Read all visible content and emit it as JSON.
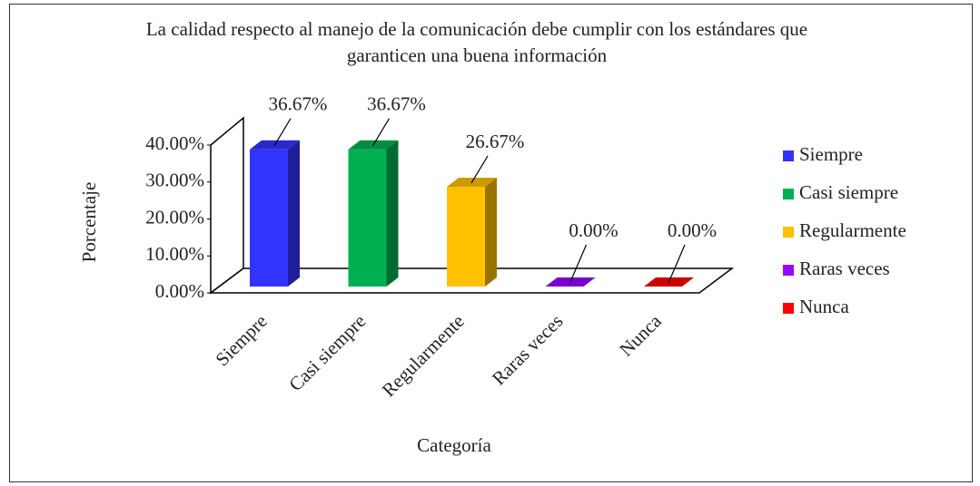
{
  "chart_data": {
    "type": "bar3d",
    "title": "La calidad respecto al manejo de la comunicación debe cumplir con los estándares que garanticen una buena información",
    "xlabel": "Categoría",
    "ylabel": "Porcentaje",
    "categories": [
      "Siempre",
      "Casi siempre",
      "Regularmente",
      "Raras veces",
      "Nunca"
    ],
    "values": [
      36.67,
      36.67,
      26.67,
      0,
      0
    ],
    "value_labels": [
      "36.67%",
      "36.67%",
      "26.67%",
      "0.00%",
      "0.00%"
    ],
    "colors": [
      "#3333ff",
      "#00b050",
      "#ffc000",
      "#9900ff",
      "#ff0000"
    ],
    "ylim": [
      0,
      40
    ],
    "yticks": [
      {
        "value": 0,
        "label": "0.00%"
      },
      {
        "value": 10,
        "label": "10.00%"
      },
      {
        "value": 20,
        "label": "20.00%"
      },
      {
        "value": 30,
        "label": "30.00%"
      },
      {
        "value": 40,
        "label": "40.00%"
      }
    ],
    "legend": "right"
  }
}
